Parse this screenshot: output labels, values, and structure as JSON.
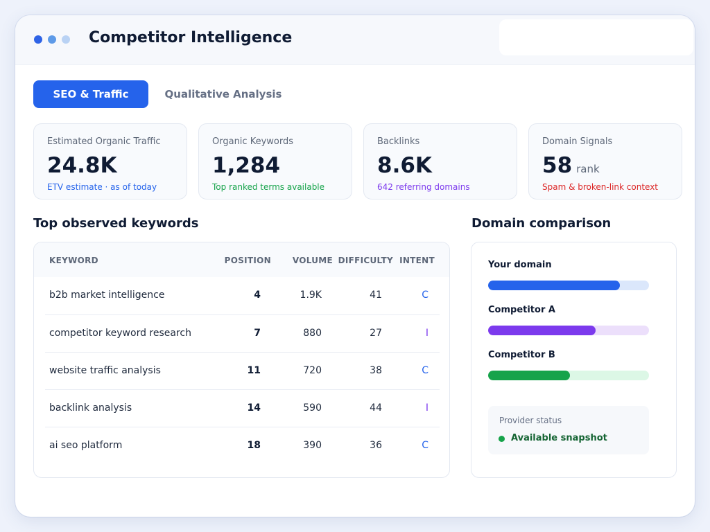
{
  "app": {
    "title": "Competitor Intelligence"
  },
  "tabs": [
    {
      "label": "SEO & Traffic",
      "active": true
    },
    {
      "label": "Qualitative Analysis",
      "active": false
    }
  ],
  "metrics": [
    {
      "label": "Estimated Organic Traffic",
      "value": "24.8K",
      "unit": "",
      "sub": "ETV estimate · as of today",
      "sub_color": "#2563eb"
    },
    {
      "label": "Organic Keywords",
      "value": "1,284",
      "unit": "",
      "sub": "Top ranked terms available",
      "sub_color": "#16a34a"
    },
    {
      "label": "Backlinks",
      "value": "8.6K",
      "unit": "",
      "sub": "642 referring domains",
      "sub_color": "#7c3aed"
    },
    {
      "label": "Domain Signals",
      "value": "58",
      "unit": "rank",
      "sub": "Spam & broken-link context",
      "sub_color": "#dc2626"
    }
  ],
  "keywords": {
    "title": "Top observed keywords",
    "headers": {
      "keyword": "KEYWORD",
      "position": "POSITION",
      "volume": "VOLUME",
      "difficulty": "DIFFICULTY",
      "intent": "INTENT"
    },
    "rows": [
      {
        "keyword": "b2b market intelligence",
        "position": "4",
        "volume": "1.9K",
        "difficulty": "41",
        "intent": "C"
      },
      {
        "keyword": "competitor keyword research",
        "position": "7",
        "volume": "880",
        "difficulty": "27",
        "intent": "I"
      },
      {
        "keyword": "website traffic analysis",
        "position": "11",
        "volume": "720",
        "difficulty": "38",
        "intent": "C"
      },
      {
        "keyword": "backlink analysis",
        "position": "14",
        "volume": "590",
        "difficulty": "44",
        "intent": "I"
      },
      {
        "keyword": "ai seo platform",
        "position": "18",
        "volume": "390",
        "difficulty": "36",
        "intent": "C"
      }
    ],
    "intent_colors": {
      "C": "#2563eb",
      "I": "#7c3aed"
    }
  },
  "comparison": {
    "title": "Domain comparison",
    "domains": [
      {
        "label": "Your domain",
        "fill": 0.82,
        "color": "#2563eb",
        "track": "#dbe7fb"
      },
      {
        "label": "Competitor A",
        "fill": 0.67,
        "color": "#7c3aed",
        "track": "#ecdffb"
      },
      {
        "label": "Competitor B",
        "fill": 0.51,
        "color": "#16a34a",
        "track": "#dcf7e6"
      }
    ],
    "status": {
      "label": "Provider status",
      "text": "Available snapshot",
      "color": "#16a34a"
    }
  }
}
